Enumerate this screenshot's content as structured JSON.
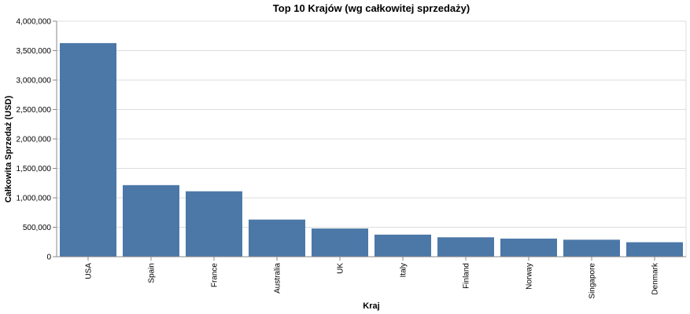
{
  "chart_data": {
    "type": "bar",
    "title": "Top 10 Krajów (wg całkowitej sprzedaży)",
    "xlabel": "Kraj",
    "ylabel": "Całkowita Sprzedaż (USD)",
    "categories": [
      "USA",
      "Spain",
      "France",
      "Australia",
      "UK",
      "Italy",
      "Finland",
      "Norway",
      "Singapore",
      "Denmark"
    ],
    "values": [
      3627983,
      1215687,
      1110917,
      630623,
      478880,
      374674,
      329581,
      307463,
      288488,
      245637
    ],
    "ylim": [
      0,
      4000000
    ],
    "yticks": [
      "0",
      "500,000",
      "1,000,000",
      "1,500,000",
      "2,000,000",
      "2,500,000",
      "3,000,000",
      "3,500,000",
      "4,000,000"
    ],
    "grid": true,
    "bar_color": "#4c78a8"
  }
}
